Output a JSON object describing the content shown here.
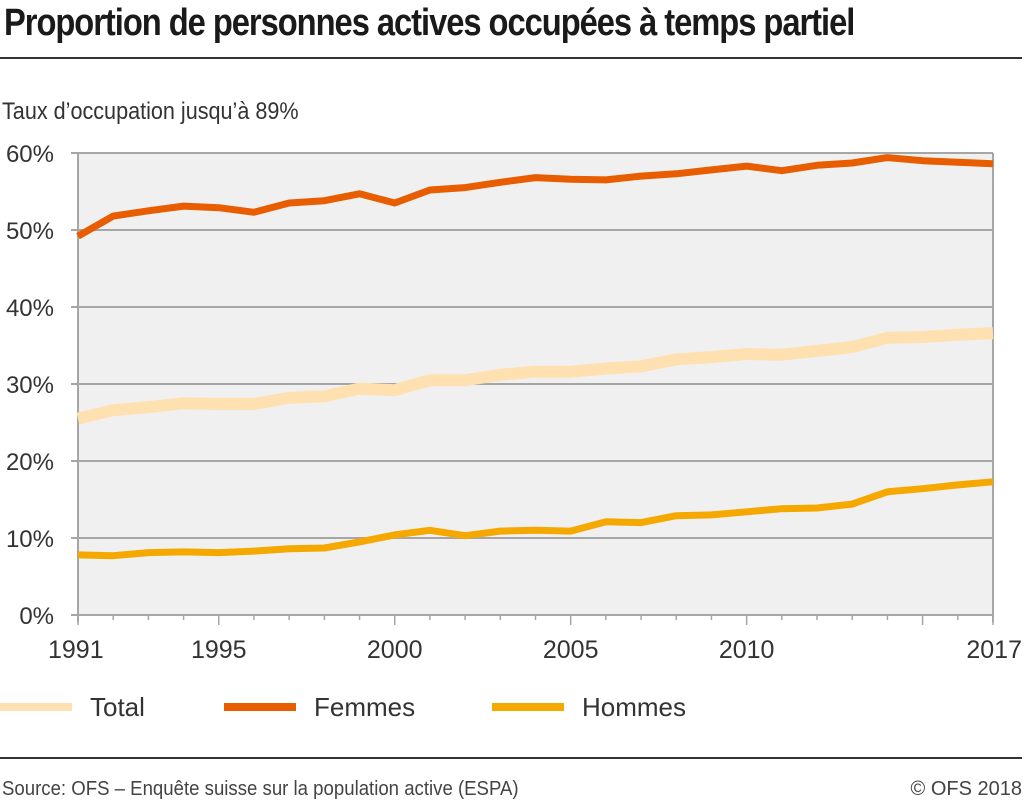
{
  "header": {
    "title": "Proportion de personnes actives occupées à temps partiel",
    "subtitle": "Taux d’occupation jusqu’à 89%"
  },
  "footer": {
    "source": "Source: OFS – Enquête suisse sur la population active (ESPA)",
    "copyright": "© OFS 2018"
  },
  "colors": {
    "plot_background": "#f0f0f0",
    "gridline": "#a6a6a6",
    "Total": "#ffe0b0",
    "Femmes": "#e85d00",
    "Hommes": "#f5a800"
  },
  "chart_data": {
    "type": "line",
    "title": "Proportion de personnes actives occupées à temps partiel",
    "subtitle": "Taux d’occupation jusqu’à 89%",
    "xlabel": "",
    "ylabel": "",
    "x": [
      1991,
      1992,
      1993,
      1994,
      1995,
      1996,
      1997,
      1998,
      1999,
      2000,
      2001,
      2002,
      2003,
      2004,
      2005,
      2006,
      2007,
      2008,
      2009,
      2010,
      2011,
      2012,
      2013,
      2014,
      2015,
      2016,
      2017
    ],
    "xticks": [
      1991,
      1995,
      2000,
      2005,
      2010,
      2017
    ],
    "xtick_labels": [
      "1991",
      "1995",
      "2000",
      "2005",
      "2010",
      "2017"
    ],
    "xlim": [
      1991,
      2017
    ],
    "ylim": [
      0,
      60
    ],
    "yticks": [
      0,
      10,
      20,
      30,
      40,
      50,
      60
    ],
    "ytick_labels": [
      "0%",
      "10%",
      "20%",
      "30%",
      "40%",
      "50%",
      "60%"
    ],
    "grid": "horizontal",
    "legend_position": "bottom",
    "series": [
      {
        "name": "Total",
        "color": "#ffe0b0",
        "values": [
          25.5,
          26.6,
          27.0,
          27.5,
          27.4,
          27.4,
          28.2,
          28.4,
          29.4,
          29.2,
          30.5,
          30.5,
          31.2,
          31.6,
          31.6,
          32.0,
          32.3,
          33.2,
          33.5,
          33.9,
          33.8,
          34.3,
          34.8,
          36.0,
          36.1,
          36.4,
          36.6
        ]
      },
      {
        "name": "Femmes",
        "color": "#e85d00",
        "values": [
          49.2,
          51.8,
          52.5,
          53.1,
          52.9,
          52.3,
          53.5,
          53.8,
          54.7,
          53.5,
          55.2,
          55.5,
          56.2,
          56.8,
          56.6,
          56.5,
          57.0,
          57.3,
          57.8,
          58.3,
          57.7,
          58.4,
          58.7,
          59.4,
          59.0,
          58.8,
          58.6
        ]
      },
      {
        "name": "Hommes",
        "color": "#f5a800",
        "values": [
          7.8,
          7.7,
          8.1,
          8.2,
          8.1,
          8.3,
          8.6,
          8.7,
          9.5,
          10.4,
          11.0,
          10.3,
          10.9,
          11.0,
          10.9,
          12.1,
          12.0,
          12.9,
          13.0,
          13.4,
          13.8,
          13.9,
          14.4,
          16.0,
          16.4,
          16.9,
          17.3
        ]
      }
    ]
  }
}
